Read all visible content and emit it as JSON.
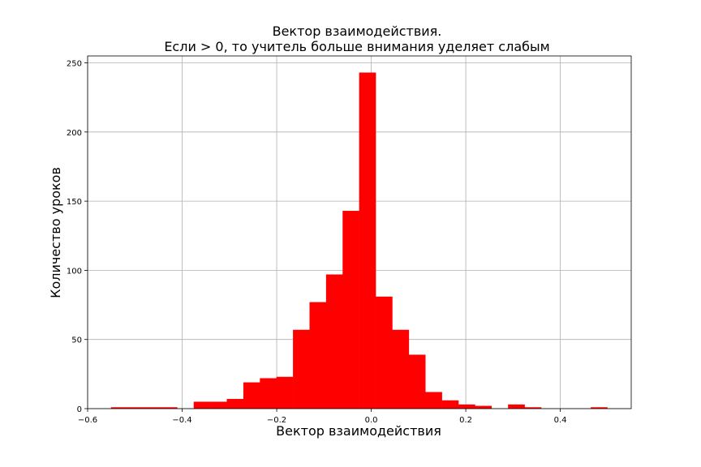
{
  "chart_data": {
    "type": "bar",
    "subtype": "histogram",
    "title_line1": "Вектор взаимодействия.",
    "title_line2": "Если > 0, то учитель больше внимания уделяет слабым",
    "xlabel": "Вектор взаимодействия",
    "ylabel": "Количество уроков",
    "xlim": [
      -0.6,
      0.55
    ],
    "ylim": [
      0,
      255
    ],
    "xticks": [
      -0.6,
      -0.4,
      -0.2,
      0.0,
      0.2,
      0.4
    ],
    "xtick_labels": [
      "−0.6",
      "−0.4",
      "−0.2",
      "0.0",
      "0.2",
      "0.4"
    ],
    "yticks": [
      0,
      50,
      100,
      150,
      200,
      250
    ],
    "ytick_labels": [
      "0",
      "50",
      "100",
      "150",
      "200",
      "250"
    ],
    "grid": true,
    "color": "#ff0000",
    "bin_edges": [
      -0.5506,
      -0.5156,
      -0.4806,
      -0.4456,
      -0.4106,
      -0.3756,
      -0.3406,
      -0.3056,
      -0.2706,
      -0.2356,
      -0.2006,
      -0.1656,
      -0.1306,
      -0.0956,
      -0.0606,
      -0.0256,
      0.0094,
      0.0444,
      0.0794,
      0.1144,
      0.1494,
      0.1844,
      0.2194,
      0.2544,
      0.2894,
      0.3244,
      0.3594,
      0.3944,
      0.4294,
      0.4644,
      0.4994
    ],
    "values": [
      1,
      1,
      1,
      1,
      0,
      5,
      5,
      7,
      19,
      22,
      23,
      57,
      77,
      97,
      143,
      243,
      81,
      57,
      39,
      12,
      6,
      3,
      2,
      0,
      3,
      1,
      0,
      0,
      0,
      1
    ]
  }
}
